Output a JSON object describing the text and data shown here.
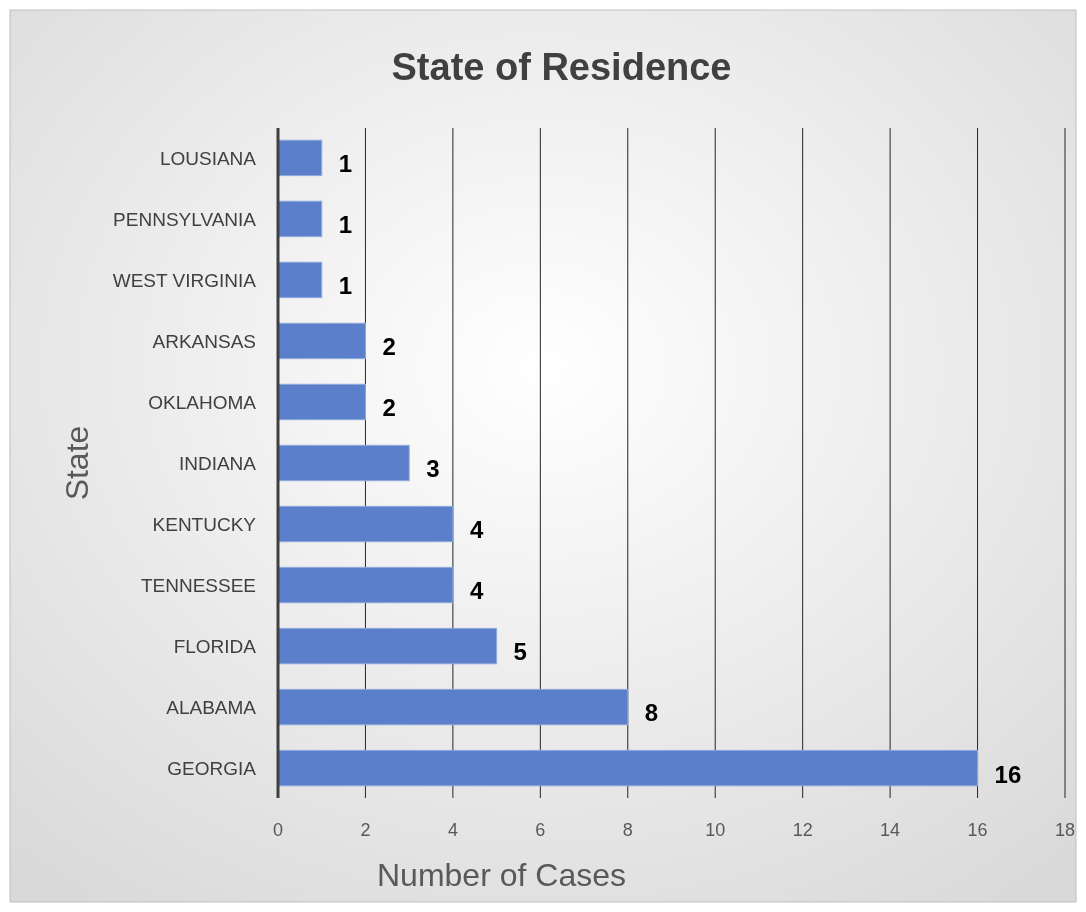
{
  "chart_data": {
    "type": "bar",
    "orientation": "horizontal",
    "title": "State of Residence",
    "xlabel": "Number of Cases",
    "ylabel": "State",
    "categories": [
      "LOUSIANA",
      "PENNSYLVANIA",
      "WEST VIRGINIA",
      "ARKANSAS",
      "OKLAHOMA",
      "INDIANA",
      "KENTUCKY",
      "TENNESSEE",
      "FLORIDA",
      "ALABAMA",
      "GEORGIA"
    ],
    "values": [
      1,
      1,
      1,
      2,
      2,
      3,
      4,
      4,
      5,
      8,
      16
    ],
    "color": "#5b7fca",
    "xlim": [
      0,
      18
    ],
    "xticks": [
      0,
      2,
      4,
      6,
      8,
      10,
      12,
      14,
      16,
      18
    ],
    "grid": "x",
    "data_labels": true
  }
}
